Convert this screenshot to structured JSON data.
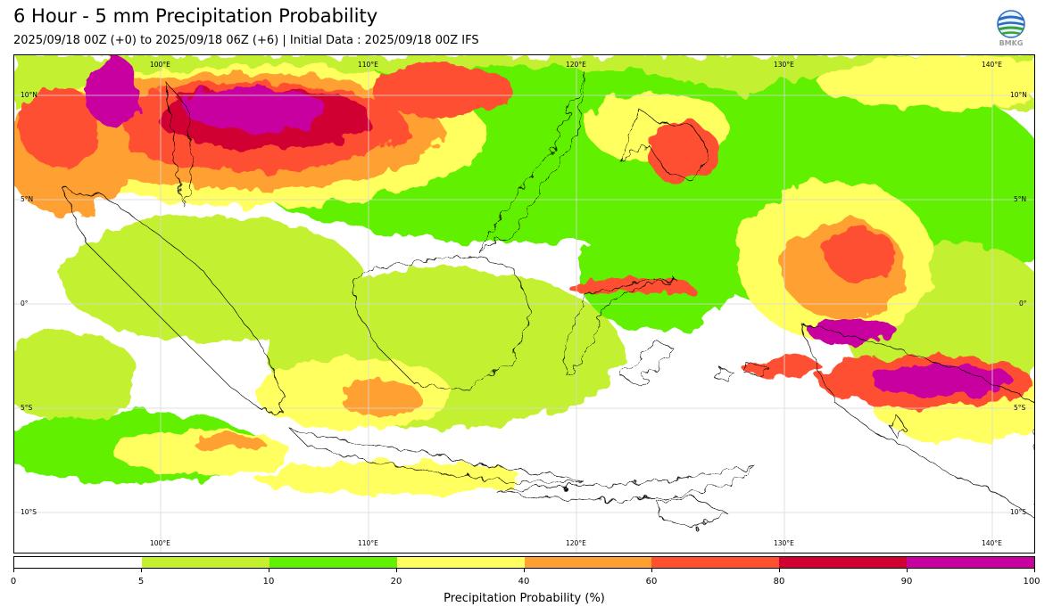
{
  "header": {
    "title": "6 Hour - 5 mm Precipitation Probability",
    "subtitle": "2025/09/18 00Z (+0) to 2025/09/18 06Z (+6) | Initial Data : 2025/09/18 00Z IFS"
  },
  "logo": {
    "text": "BMKG",
    "icon": "bmkg-globe-icon"
  },
  "map": {
    "lon_labels_top": [
      "100°E",
      "110°E",
      "120°E",
      "130°E",
      "140°E"
    ],
    "lon_labels_bottom": [
      "100°E",
      "110°E",
      "120°E",
      "130°E",
      "140°E"
    ],
    "lat_labels_left": [
      "10°N",
      "5°N",
      "0°",
      "5°S",
      "10°S"
    ],
    "lat_labels_right": [
      "10°N",
      "5°N",
      "0°",
      "5°S",
      "10°S"
    ],
    "background_color": "#ffffff",
    "gridline_color": "#d8d8d8"
  },
  "colorbar": {
    "title": "Precipitation Probability (%)",
    "ticks": [
      "0",
      "5",
      "10",
      "20",
      "40",
      "60",
      "80",
      "90",
      "100"
    ],
    "colors": [
      "#ffffff",
      "#c4f030",
      "#60f000",
      "#ffff60",
      "#ffa030",
      "#ff5030",
      "#d00030",
      "#c800a0"
    ]
  }
}
